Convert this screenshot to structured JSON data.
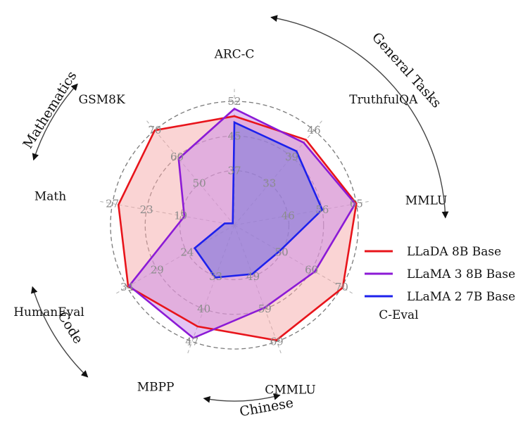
{
  "chart_data": {
    "type": "radar",
    "axes": [
      "ARC-C",
      "TruthfulQA",
      "MMLU",
      "C-Eval",
      "CMMLU",
      "MBPP",
      "HumanEval",
      "Math",
      "GSM8K"
    ],
    "ticks": [
      [
        "52",
        "45",
        "37"
      ],
      [
        "46",
        "39",
        "33"
      ],
      [
        "65",
        "56",
        "46"
      ],
      [
        "70",
        "60",
        "50"
      ],
      [
        "69",
        "59",
        "49"
      ],
      [
        "47",
        "40",
        "33"
      ],
      [
        "34",
        "29",
        "24"
      ],
      [
        "27",
        "23",
        "19"
      ],
      [
        "70",
        "60",
        "50"
      ]
    ],
    "series": [
      {
        "name": "LLaDA 8B Base",
        "color": "#e8141b",
        "fill": "#f6a9a9",
        "values": [
          0.88,
          0.9,
          1.0,
          1.01,
          0.99,
          0.87,
          0.99,
          0.95,
          1.0
        ]
      },
      {
        "name": "LLaMA 3 8B Base",
        "color": "#8b1ad6",
        "fill": "#c98ae8",
        "values": [
          0.94,
          0.87,
          0.99,
          0.75,
          0.71,
          0.97,
          0.98,
          0.41,
          0.7
        ]
      },
      {
        "name": "LLaMA 2 7B Base",
        "color": "#1d21ec",
        "fill": "#7070d8",
        "values": [
          0.83,
          0.78,
          0.72,
          0.42,
          0.42,
          0.45,
          0.37,
          0.08,
          0.02
        ]
      }
    ],
    "groups": [
      "General Tasks",
      "Chinese",
      "Code",
      "Mathematics"
    ],
    "legend_position": "right"
  }
}
